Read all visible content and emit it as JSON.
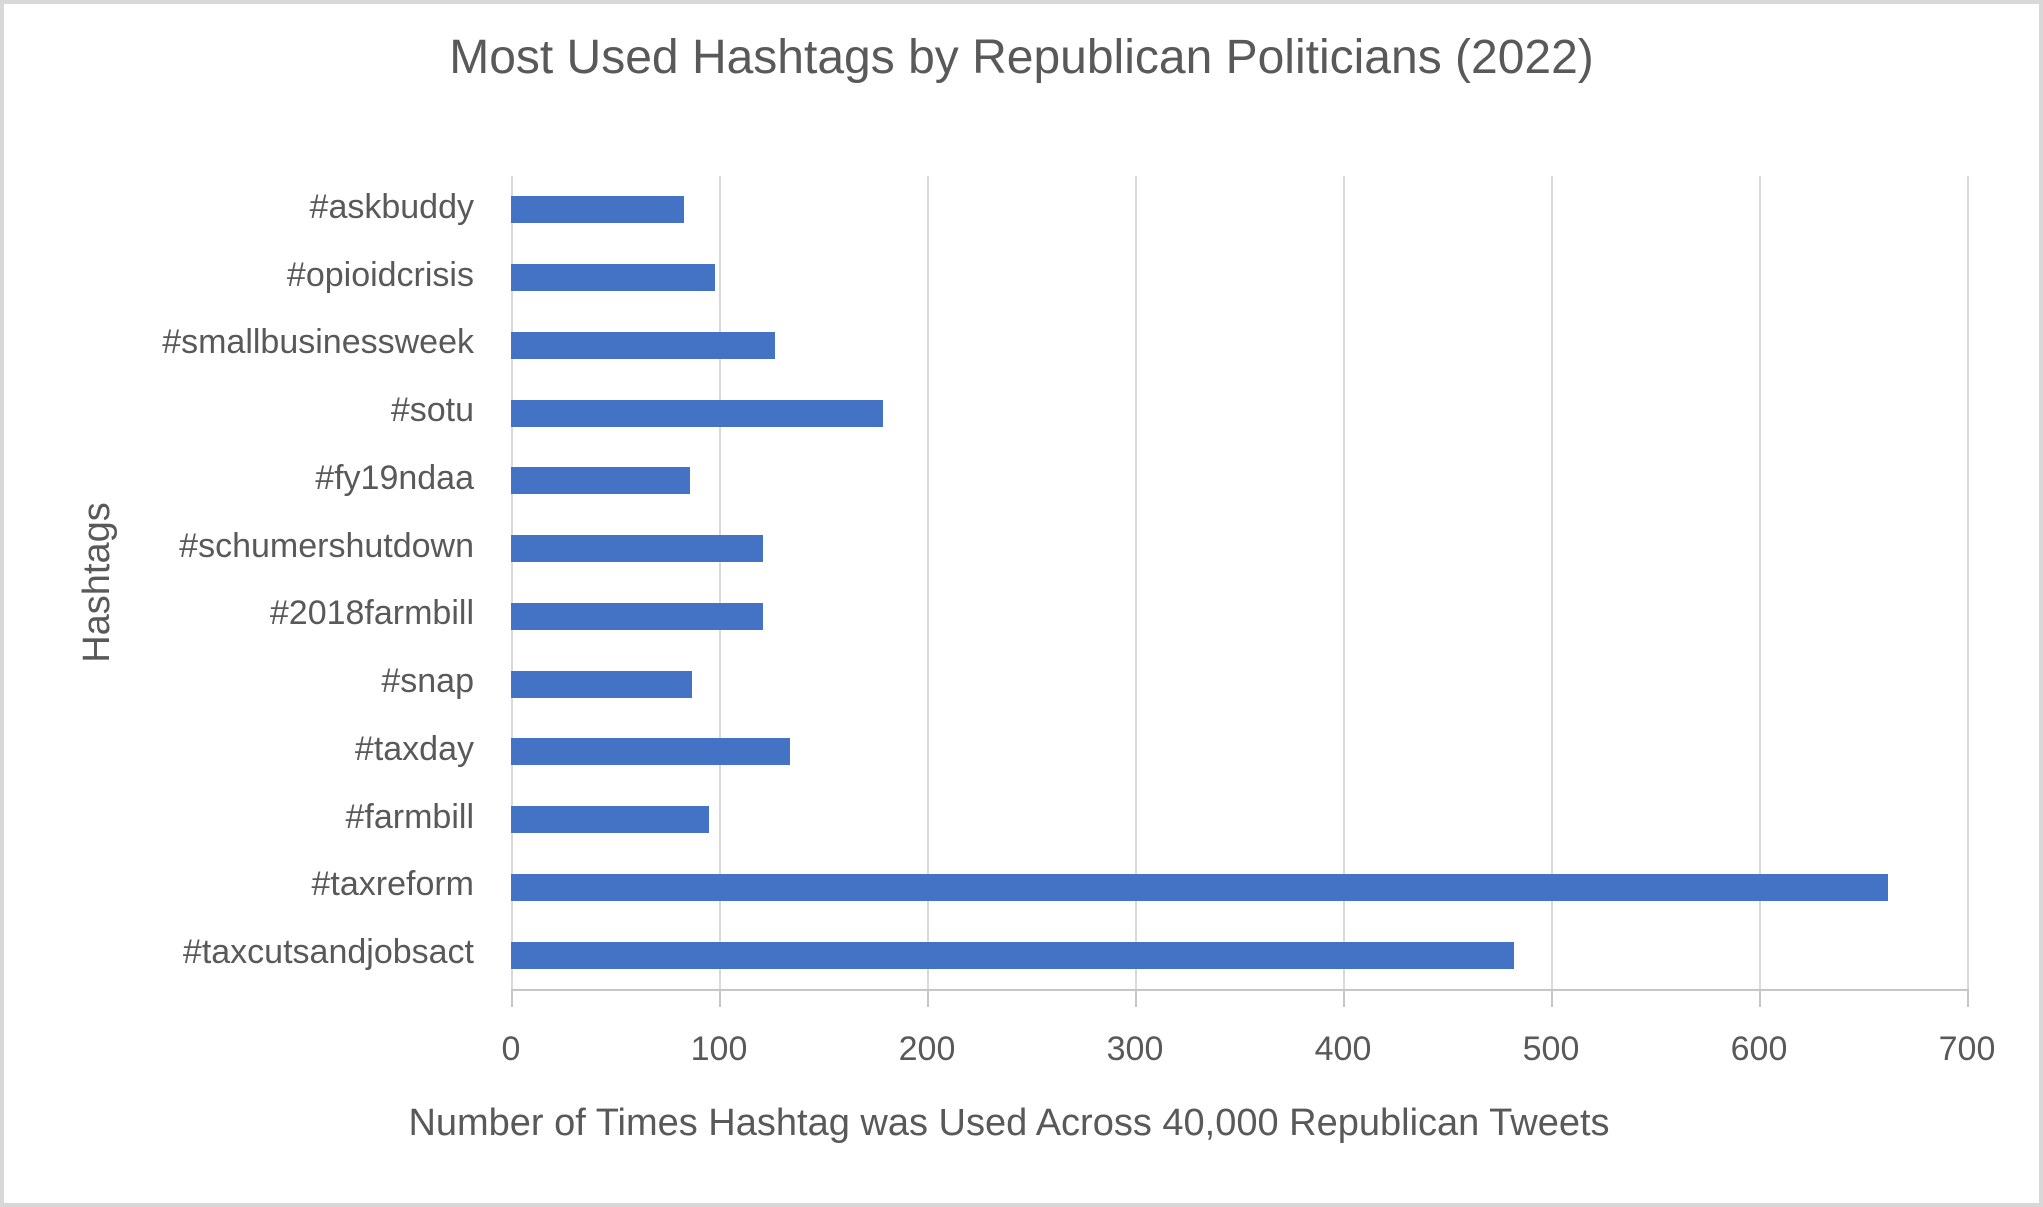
{
  "title": "Most Used Hashtags by Republican Politicians (2022)",
  "chart_data": {
    "type": "bar",
    "orientation": "horizontal",
    "title": "Most Used Hashtags by Republican Politicians (2022)",
    "xlabel": "Number of Times Hashtag was Used Across 40,000 Republican Tweets",
    "ylabel": "Hashtags",
    "categories": [
      "#askbuddy",
      "#opioidcrisis",
      "#smallbusinessweek",
      "#sotu",
      "#fy19ndaa",
      "#schumershutdown",
      "#2018farmbill",
      "#snap",
      "#taxday",
      "#farmbill",
      "#taxreform",
      "#taxcutsandjobsact"
    ],
    "values": [
      83,
      98,
      127,
      179,
      86,
      121,
      121,
      87,
      134,
      95,
      662,
      482
    ],
    "xlim": [
      0,
      700
    ],
    "xticks": [
      0,
      100,
      200,
      300,
      400,
      500,
      600,
      700
    ],
    "grid": "vertical-gridlines-on",
    "legend": "none",
    "colors": {
      "bar": "#4472C4",
      "gridline": "#D9D9D9",
      "axis_line": "#C6C6C6",
      "text": "#595959",
      "frame_border": "#D8D8D8",
      "background": "#FFFFFF"
    }
  }
}
